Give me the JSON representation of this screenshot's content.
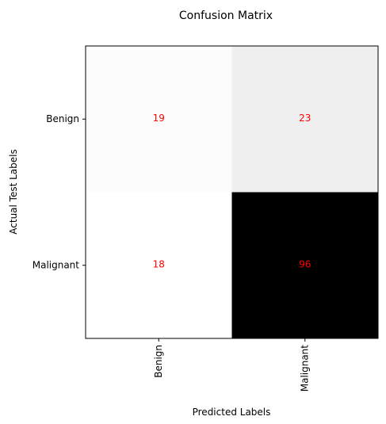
{
  "chart_data": {
    "type": "heatmap",
    "title": "Confusion Matrix",
    "xlabel": "Predicted Labels",
    "ylabel": "Actual Test Labels",
    "x_categories": [
      "Benign",
      "Malignant"
    ],
    "y_categories": [
      "Benign",
      "Malignant"
    ],
    "values": [
      [
        19,
        23
      ],
      [
        18,
        96
      ]
    ],
    "colormap": "greys",
    "annotation_color": "#ff0000",
    "grid": false,
    "legend": "none"
  }
}
